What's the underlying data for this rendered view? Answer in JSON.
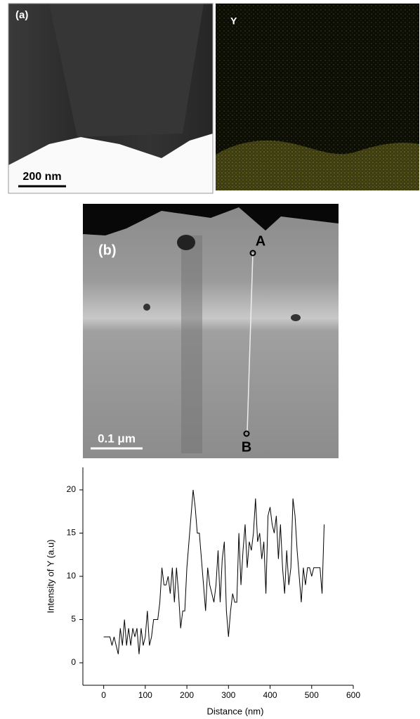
{
  "panels": {
    "a": {
      "label": "(a)",
      "scale_bar": "200 nm",
      "map_label": "Y"
    },
    "b": {
      "label": "(b)",
      "scale_bar": "0.1 μm",
      "point_a": "A",
      "point_b": "B"
    }
  },
  "chart_data": {
    "type": "line",
    "x_label": "Distance (nm)",
    "y_label": "Intensity of Y (a.u)",
    "x": [
      0,
      5,
      10,
      15,
      20,
      25,
      30,
      35,
      40,
      45,
      50,
      55,
      60,
      65,
      70,
      75,
      80,
      85,
      90,
      95,
      100,
      105,
      110,
      115,
      120,
      125,
      130,
      135,
      140,
      145,
      150,
      155,
      160,
      165,
      170,
      175,
      180,
      185,
      190,
      195,
      200,
      205,
      210,
      215,
      220,
      225,
      230,
      235,
      240,
      245,
      250,
      255,
      260,
      265,
      270,
      275,
      280,
      285,
      290,
      295,
      300,
      305,
      310,
      315,
      320,
      325,
      330,
      335,
      340,
      345,
      350,
      355,
      360,
      365,
      370,
      375,
      380,
      385,
      390,
      395,
      400,
      405,
      410,
      415,
      420,
      425,
      430,
      435,
      440,
      445,
      450,
      455,
      460,
      465,
      470,
      475,
      480,
      485,
      490,
      495,
      500,
      505,
      510,
      515,
      520,
      525,
      530
    ],
    "values": [
      3,
      3,
      3,
      3,
      2,
      3,
      2,
      1,
      4,
      2,
      5,
      2,
      4,
      2,
      4,
      3,
      4,
      1,
      4,
      2,
      3,
      6,
      2,
      3,
      5,
      5,
      5,
      7,
      11,
      9,
      9,
      10,
      8,
      11,
      7,
      11,
      8,
      4,
      6,
      6,
      11,
      14,
      17,
      20,
      18,
      15,
      15,
      12,
      9,
      6,
      11,
      9,
      8,
      7,
      9,
      13,
      7,
      12,
      14,
      6,
      3,
      6,
      8,
      7,
      7,
      15,
      9,
      13,
      16,
      11,
      14,
      13,
      15,
      19,
      14,
      15,
      12,
      14,
      8,
      17,
      18,
      16,
      15,
      17,
      12,
      16,
      11,
      8,
      13,
      9,
      11,
      19,
      17,
      13,
      10,
      7,
      11,
      9,
      11,
      11,
      10,
      11,
      11,
      11,
      11,
      8,
      16
    ],
    "color": "#000000",
    "xlim": [
      -50,
      600
    ],
    "ylim": [
      -2.6,
      22.6
    ],
    "xticks": [
      0,
      100,
      200,
      300,
      400,
      500,
      600
    ],
    "yticks": [
      0,
      5,
      10,
      15,
      20
    ]
  }
}
